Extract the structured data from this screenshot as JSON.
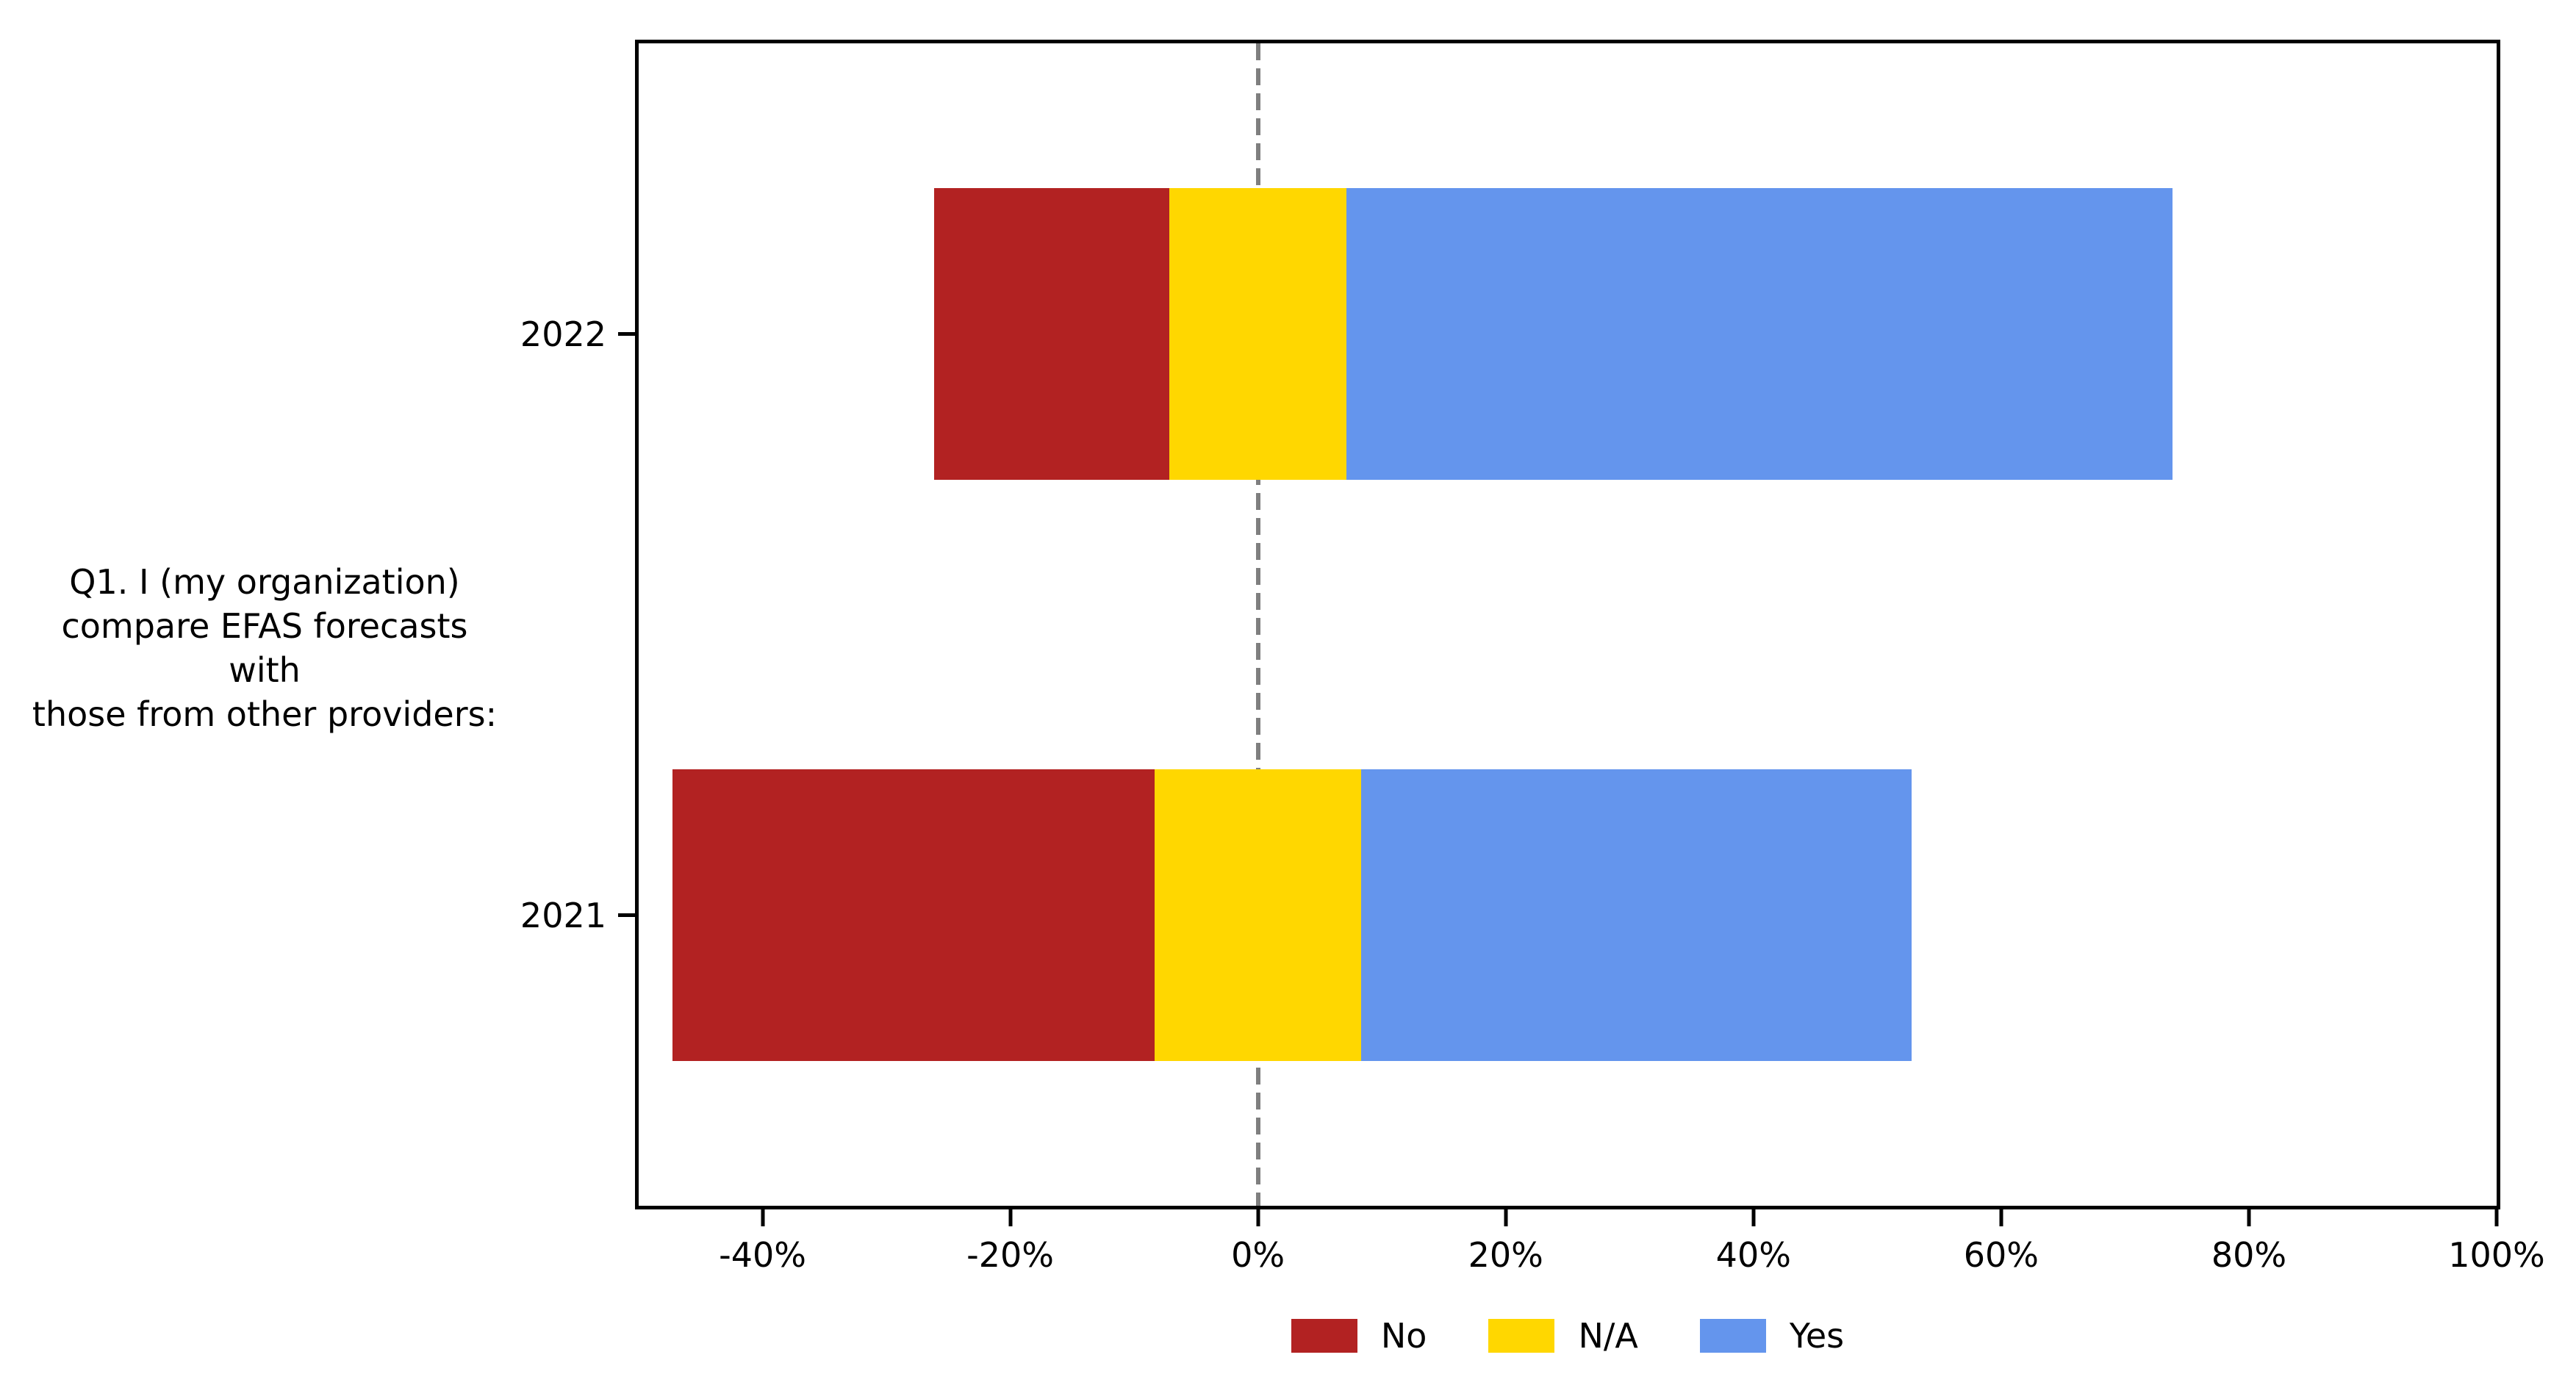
{
  "chart_data": {
    "type": "bar",
    "variant": "horizontal-diverging-stacked-likert",
    "title": "",
    "question_label": "Q1. I (my organization) compare EFAS forecasts with those from other providers:",
    "question_label_lines": [
      "Q1. I (my organization)",
      "compare EFAS forecasts with",
      "those from other providers:"
    ],
    "categories": [
      "2022",
      "2021"
    ],
    "series": [
      {
        "name": "No",
        "color": "#B22222",
        "values": [
          19.0,
          38.9
        ]
      },
      {
        "name": "N/A",
        "color": "#FFD700",
        "values": [
          14.3,
          16.7
        ]
      },
      {
        "name": "Yes",
        "color": "#6495ED",
        "values": [
          66.7,
          44.4
        ]
      }
    ],
    "stack_rule": "segments stacked No|N/A|Yes with midpoint of N/A centered on 0%",
    "xlim": [
      -50,
      100
    ],
    "x_tick_values": [
      -40,
      -20,
      0,
      20,
      40,
      60,
      80,
      100
    ],
    "x_tick_labels": [
      "-40%",
      "-20%",
      "0%",
      "20%",
      "40%",
      "60%",
      "80%",
      "100%"
    ],
    "zero_line": {
      "color": "#7f7f7f",
      "style": "dashed"
    },
    "axis_color": "#000000",
    "legend": {
      "position": "bottom-center",
      "entries": [
        "No",
        "N/A",
        "Yes"
      ]
    }
  }
}
